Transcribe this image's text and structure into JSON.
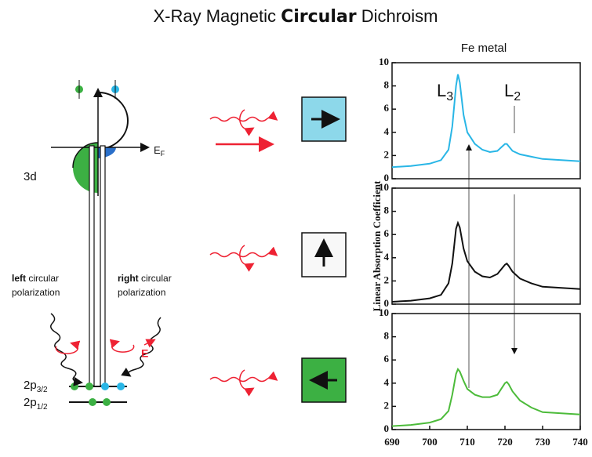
{
  "title": {
    "start": "X-Ray Magnetic",
    "bold": "Circular",
    "end": "Dichroism"
  },
  "diagram": {
    "level_3d": "3d",
    "fermi": {
      "main": "E",
      "sub": "F"
    },
    "left_pol": {
      "bold": "left",
      "rest": "circular",
      "line2": "polarization"
    },
    "right_pol": {
      "bold": "right",
      "rest": "circular",
      "line2": "polarization"
    },
    "field": "E",
    "level_2p32": {
      "main": "2p",
      "sub": "3/2"
    },
    "level_2p12": {
      "main": "2p",
      "sub": "1/2"
    }
  },
  "figure": {
    "panel_title": "Fe metal",
    "y_label": "Linear Absorption Coefficient",
    "peaks": [
      {
        "main": "L",
        "sub": "3"
      },
      {
        "main": "L",
        "sub": "2"
      }
    ]
  },
  "chart_data": [
    {
      "type": "line",
      "x": [
        690,
        695,
        700,
        703,
        705,
        706,
        707,
        707.5,
        708,
        709,
        710,
        712,
        714,
        716,
        718,
        719,
        720,
        720.5,
        721,
        722,
        724,
        727,
        730,
        735,
        740
      ],
      "series": [
        {
          "color": "#29b6e6",
          "values": [
            1.0,
            1.1,
            1.3,
            1.6,
            2.5,
            4.5,
            8.0,
            9.0,
            8.3,
            5.5,
            4.0,
            3.0,
            2.5,
            2.3,
            2.4,
            2.7,
            3.0,
            3.0,
            2.8,
            2.4,
            2.1,
            1.9,
            1.7,
            1.6,
            1.5
          ]
        }
      ],
      "xlim": [
        690,
        740
      ],
      "ylim": [
        0,
        10
      ],
      "yticks": [
        0,
        2,
        4,
        6,
        8,
        10
      ]
    },
    {
      "type": "line",
      "x": [
        690,
        695,
        700,
        703,
        705,
        706,
        707,
        707.5,
        708,
        709,
        710,
        712,
        714,
        716,
        718,
        719,
        720,
        720.5,
        721,
        722,
        724,
        727,
        730,
        735,
        740
      ],
      "series": [
        {
          "color": "#111111",
          "values": [
            0.2,
            0.3,
            0.5,
            0.8,
            1.8,
            3.5,
            6.5,
            7.0,
            6.6,
            4.8,
            3.7,
            2.8,
            2.4,
            2.3,
            2.6,
            3.0,
            3.4,
            3.5,
            3.3,
            2.8,
            2.2,
            1.8,
            1.5,
            1.4,
            1.3
          ]
        }
      ],
      "xlim": [
        690,
        740
      ],
      "ylim": [
        0,
        10
      ],
      "yticks": [
        0,
        2,
        4,
        6,
        8,
        10
      ]
    },
    {
      "type": "line",
      "x": [
        690,
        695,
        700,
        703,
        705,
        706,
        707,
        707.5,
        708,
        709,
        710,
        712,
        714,
        716,
        718,
        719,
        720,
        720.5,
        721,
        722,
        724,
        727,
        730,
        735,
        740
      ],
      "series": [
        {
          "color": "#4cbb3a",
          "values": [
            0.3,
            0.4,
            0.6,
            0.9,
            1.6,
            3.0,
            4.8,
            5.2,
            5.0,
            4.2,
            3.5,
            3.0,
            2.8,
            2.8,
            3.0,
            3.5,
            4.0,
            4.1,
            3.9,
            3.3,
            2.5,
            1.9,
            1.5,
            1.4,
            1.3
          ]
        }
      ],
      "xlim": [
        690,
        740
      ],
      "ylim": [
        0,
        10
      ],
      "yticks": [
        0,
        2,
        4,
        6,
        8,
        10
      ],
      "xticks": [
        690,
        700,
        710,
        720,
        730,
        740
      ]
    }
  ]
}
